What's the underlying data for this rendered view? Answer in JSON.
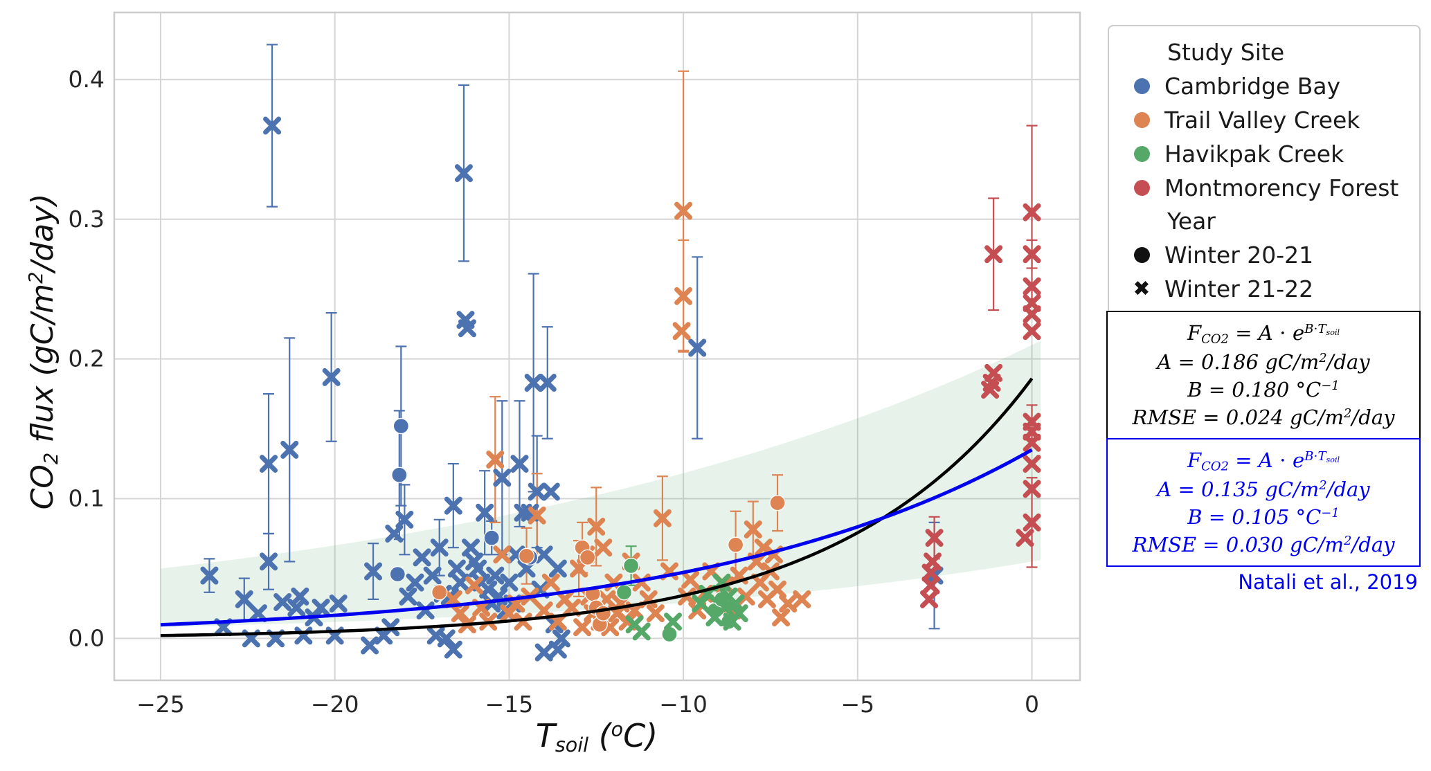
{
  "chart_data": {
    "type": "scatter",
    "title": "",
    "xlabel": "T_{soil} (^{o}C)",
    "ylabel": "CO_{2} flux (gC/m^{2}/day)",
    "xlim": [
      -26.33,
      1.38
    ],
    "ylim": [
      -0.03,
      0.448
    ],
    "xticks": [
      {
        "v": -25,
        "label": "−25"
      },
      {
        "v": -20,
        "label": "−20"
      },
      {
        "v": -15,
        "label": "−15"
      },
      {
        "v": -10,
        "label": "−10"
      },
      {
        "v": -5,
        "label": "−5"
      },
      {
        "v": 0,
        "label": "0"
      }
    ],
    "yticks": [
      {
        "v": 0.0,
        "label": "0.0"
      },
      {
        "v": 0.1,
        "label": "0.1"
      },
      {
        "v": 0.2,
        "label": "0.2"
      },
      {
        "v": 0.3,
        "label": "0.3"
      },
      {
        "v": 0.4,
        "label": "0.4"
      }
    ],
    "grid": true,
    "grid_color": "#d5d5d5",
    "frame_color": "#cccccc",
    "legend_position": "outside-right",
    "fits": [
      {
        "name": "this-study-fit",
        "color": "#000000",
        "A": 0.186,
        "B": 0.18,
        "range": [
          -25,
          0
        ],
        "width": 4.5
      },
      {
        "name": "natali-2019-fit",
        "color": "#0000ee",
        "A": 0.135,
        "B": 0.105,
        "range": [
          -25,
          0
        ],
        "width": 5
      }
    ],
    "band": {
      "name": "natali-uncertainty-band",
      "color": "rgba(85,168,104,0.14)",
      "upper": {
        "A": 0.21,
        "B": 0.0574
      },
      "lower": {
        "A": 0.055,
        "B": 0.077
      },
      "range": [
        -25,
        0.4
      ]
    },
    "series": [
      {
        "site": "Cambridge Bay",
        "year": "Winter 21-22",
        "marker": "x",
        "color": "#4C72B0",
        "points": [
          [
            -23.6,
            0.045,
            0.012
          ],
          [
            -23.2,
            0.008
          ],
          [
            -22.6,
            0.028,
            0.015
          ],
          [
            -22.4,
            0.0
          ],
          [
            -22.2,
            0.018
          ],
          [
            -21.9,
            0.125,
            0.05
          ],
          [
            -21.8,
            0.367,
            0.058
          ],
          [
            -21.9,
            0.055,
            0.02
          ],
          [
            -21.7,
            0.0
          ],
          [
            -21.5,
            0.026
          ],
          [
            -21.3,
            0.135,
            0.08
          ],
          [
            -21.1,
            0.022
          ],
          [
            -21.0,
            0.03
          ],
          [
            -20.9,
            0.002
          ],
          [
            -20.6,
            0.015
          ],
          [
            -20.4,
            0.022
          ],
          [
            -20.1,
            0.187,
            0.046
          ],
          [
            -20.0,
            0.002
          ],
          [
            -19.9,
            0.025
          ],
          [
            -19.0,
            -0.005
          ],
          [
            -18.9,
            0.048,
            0.02
          ],
          [
            -18.6,
            0.002
          ],
          [
            -18.4,
            0.008
          ],
          [
            -18.3,
            0.075
          ],
          [
            -18.0,
            0.085,
            0.025
          ],
          [
            -17.9,
            0.03
          ],
          [
            -17.7,
            0.04
          ],
          [
            -17.5,
            0.058
          ],
          [
            -17.4,
            0.02
          ],
          [
            -17.2,
            0.045
          ],
          [
            -17.1,
            0.002
          ],
          [
            -17.0,
            0.065,
            0.02
          ],
          [
            -16.9,
            0.032
          ],
          [
            -16.8,
            0.0
          ],
          [
            -16.7,
            0.03
          ],
          [
            -16.6,
            0.095,
            0.03
          ],
          [
            -16.6,
            -0.008
          ],
          [
            -16.5,
            0.05
          ],
          [
            -16.4,
            0.04
          ],
          [
            -16.3,
            0.333,
            0.063
          ],
          [
            -16.25,
            0.228
          ],
          [
            -16.2,
            0.222
          ],
          [
            -16.1,
            0.065
          ],
          [
            -16.0,
            0.055
          ],
          [
            -15.9,
            0.05
          ],
          [
            -15.8,
            0.04
          ],
          [
            -15.7,
            0.09,
            0.03
          ],
          [
            -15.6,
            0.035
          ],
          [
            -15.5,
            0.025
          ],
          [
            -15.4,
            0.045
          ],
          [
            -15.3,
            0.03
          ],
          [
            -15.2,
            0.115,
            0.055
          ],
          [
            -15.1,
            0.02
          ],
          [
            -15.0,
            0.04
          ],
          [
            -14.9,
            0.025
          ],
          [
            -14.8,
            0.06
          ],
          [
            -14.7,
            0.125,
            0.045
          ],
          [
            -14.6,
            0.09
          ],
          [
            -14.5,
            0.05
          ],
          [
            -14.4,
            0.09
          ],
          [
            -14.3,
            0.183,
            0.078
          ],
          [
            -14.2,
            0.105,
            0.04
          ],
          [
            -14.1,
            0.035
          ],
          [
            -14.0,
            0.06
          ],
          [
            -14.0,
            -0.01
          ],
          [
            -13.9,
            0.183,
            0.04
          ],
          [
            -13.8,
            0.105
          ],
          [
            -13.7,
            0.01
          ],
          [
            -13.6,
            0.05
          ],
          [
            -13.6,
            -0.008
          ],
          [
            -13.5,
            0.0
          ],
          [
            -9.6,
            0.208,
            0.065
          ],
          [
            -2.8,
            0.045,
            0.038
          ]
        ]
      },
      {
        "site": "Cambridge Bay",
        "year": "Winter 20-21",
        "marker": "circle",
        "color": "#4C72B0",
        "points": [
          [
            -18.1,
            0.152,
            0.057
          ],
          [
            -18.15,
            0.117,
            0.046
          ],
          [
            -18.2,
            0.046
          ],
          [
            -15.5,
            0.072,
            0.012
          ],
          [
            -14.4,
            0.058
          ]
        ]
      },
      {
        "site": "Trail Valley Creek",
        "year": "Winter 21-22",
        "marker": "x",
        "color": "#DD8452",
        "points": [
          [
            -16.6,
            0.028
          ],
          [
            -16.4,
            0.018
          ],
          [
            -16.2,
            0.01
          ],
          [
            -16.0,
            0.038
          ],
          [
            -15.8,
            0.022
          ],
          [
            -15.6,
            0.012
          ],
          [
            -15.4,
            0.128,
            0.045
          ],
          [
            -15.2,
            0.06
          ],
          [
            -15.0,
            0.018
          ],
          [
            -14.8,
            0.025
          ],
          [
            -14.6,
            0.012
          ],
          [
            -14.4,
            0.03
          ],
          [
            -14.2,
            0.088,
            0.03
          ],
          [
            -14.0,
            0.02
          ],
          [
            -13.8,
            0.04
          ],
          [
            -13.6,
            0.012
          ],
          [
            -13.4,
            0.028
          ],
          [
            -13.2,
            0.022
          ],
          [
            -13.0,
            0.05,
            0.02
          ],
          [
            -12.9,
            0.008
          ],
          [
            -12.8,
            0.06
          ],
          [
            -12.7,
            0.03
          ],
          [
            -12.6,
            0.018
          ],
          [
            -12.5,
            0.08,
            0.028
          ],
          [
            -12.4,
            0.012
          ],
          [
            -12.3,
            0.065
          ],
          [
            -12.2,
            0.028
          ],
          [
            -12.1,
            0.008
          ],
          [
            -12.0,
            0.04
          ],
          [
            -11.9,
            0.018
          ],
          [
            -11.8,
            0.025
          ],
          [
            -11.6,
            0.012
          ],
          [
            -11.5,
            0.055
          ],
          [
            -11.4,
            0.02
          ],
          [
            -11.2,
            0.04
          ],
          [
            -11.0,
            0.028
          ],
          [
            -10.8,
            0.018
          ],
          [
            -10.6,
            0.086,
            0.03
          ],
          [
            -10.4,
            0.048
          ],
          [
            -10.0,
            0.306,
            0.1
          ],
          [
            -10.0,
            0.245,
            0.04
          ],
          [
            -10.05,
            0.22
          ],
          [
            -9.9,
            0.03
          ],
          [
            -9.8,
            0.042
          ],
          [
            -9.6,
            0.02
          ],
          [
            -9.4,
            0.032
          ],
          [
            -9.2,
            0.048
          ],
          [
            -9.0,
            0.025
          ],
          [
            -8.8,
            0.038
          ],
          [
            -8.6,
            0.02
          ],
          [
            -8.4,
            0.045
          ],
          [
            -8.2,
            0.03
          ],
          [
            -8.0,
            0.078,
            0.02
          ],
          [
            -7.9,
            0.055
          ],
          [
            -7.8,
            0.04
          ],
          [
            -7.7,
            0.065
          ],
          [
            -7.6,
            0.028
          ],
          [
            -7.5,
            0.048
          ],
          [
            -7.4,
            0.06
          ],
          [
            -7.3,
            0.035
          ],
          [
            -7.2,
            0.015
          ],
          [
            -7.0,
            0.025
          ],
          [
            -6.6,
            0.028
          ]
        ]
      },
      {
        "site": "Trail Valley Creek",
        "year": "Winter 20-21",
        "marker": "circle",
        "color": "#DD8452",
        "points": [
          [
            -17.0,
            0.033
          ],
          [
            -14.5,
            0.059,
            0.02
          ],
          [
            -12.9,
            0.065,
            0.018
          ],
          [
            -12.75,
            0.058
          ],
          [
            -12.6,
            0.032
          ],
          [
            -12.5,
            0.022
          ],
          [
            -12.4,
            0.01
          ],
          [
            -12.3,
            0.018
          ],
          [
            -8.5,
            0.067,
            0.024
          ],
          [
            -7.3,
            0.097,
            0.02
          ]
        ]
      },
      {
        "site": "Havikpak Creek",
        "year": "Winter 20-21",
        "marker": "circle",
        "color": "#55A868",
        "points": [
          [
            -11.5,
            0.052,
            0.014
          ],
          [
            -11.7,
            0.033
          ],
          [
            -10.4,
            0.003
          ],
          [
            -9.1,
            0.02
          ],
          [
            -8.9,
            0.028
          ],
          [
            -8.7,
            0.012
          ]
        ]
      },
      {
        "site": "Havikpak Creek",
        "year": "Winter 21-22",
        "marker": "x",
        "color": "#55A868",
        "points": [
          [
            -11.4,
            0.01
          ],
          [
            -11.2,
            0.005
          ],
          [
            -10.3,
            0.012
          ],
          [
            -9.5,
            0.025
          ],
          [
            -9.3,
            0.032
          ],
          [
            -9.1,
            0.015
          ],
          [
            -8.9,
            0.04
          ],
          [
            -8.8,
            0.022
          ],
          [
            -8.7,
            0.03
          ],
          [
            -8.6,
            0.012
          ],
          [
            -8.5,
            0.025
          ],
          [
            -8.4,
            0.018
          ]
        ]
      },
      {
        "site": "Montmorency Forest",
        "year": "Winter 21-22",
        "marker": "x",
        "color": "#C44E52",
        "points": [
          [
            0.0,
            0.305,
            0.062
          ],
          [
            0.0,
            0.275,
            0.01
          ],
          [
            -1.1,
            0.275,
            0.04
          ],
          [
            0.0,
            0.252
          ],
          [
            0.0,
            0.24
          ],
          [
            0.0,
            0.232
          ],
          [
            0.0,
            0.22
          ],
          [
            -1.1,
            0.19
          ],
          [
            -1.15,
            0.183
          ],
          [
            -1.2,
            0.178
          ],
          [
            0.0,
            0.155,
            0.012
          ],
          [
            0.0,
            0.148
          ],
          [
            0.0,
            0.14
          ],
          [
            0.0,
            0.125
          ],
          [
            0.0,
            0.107
          ],
          [
            0.0,
            0.083,
            0.032
          ],
          [
            -0.2,
            0.072
          ],
          [
            -2.8,
            0.072,
            0.015
          ],
          [
            -2.85,
            0.055
          ],
          [
            -2.9,
            0.047
          ],
          [
            -2.9,
            0.038
          ],
          [
            -2.95,
            0.028
          ]
        ]
      }
    ]
  },
  "legend": {
    "title_site": "Study Site",
    "sites": [
      {
        "label": "Cambridge Bay",
        "color": "#4C72B0"
      },
      {
        "label": "Trail Valley Creek",
        "color": "#DD8452"
      },
      {
        "label": "Havikpak Creek",
        "color": "#55A868"
      },
      {
        "label": "Montmorency Forest",
        "color": "#C44E52"
      }
    ],
    "title_year": "Year",
    "years": [
      {
        "label": "Winter 20-21",
        "marker": "circle",
        "color": "#111111"
      },
      {
        "label": "Winter 21-22",
        "marker": "x",
        "color": "#111111",
        "glyph": "✖"
      }
    ]
  },
  "equations": {
    "fit1": {
      "color": "#000000",
      "lines": [
        "F_{CO2} = A ⋅ e^{B⋅T_{soil}}",
        "A = 0.186 gC/m^{2}/day",
        "B = 0.180 °C^{−1}",
        "RMSE = 0.024 gC/m^{2}/day"
      ]
    },
    "fit2": {
      "color": "#0000ee",
      "lines": [
        "F_{CO2} = A ⋅ e^{B⋅T_{soil}}",
        "A = 0.135 gC/m^{2}/day",
        "B = 0.105 °C^{−1}",
        "RMSE = 0.030 gC/m^{2}/day"
      ]
    }
  },
  "annotation": {
    "text": "Natali et al., 2019",
    "color": "#0000ee"
  }
}
